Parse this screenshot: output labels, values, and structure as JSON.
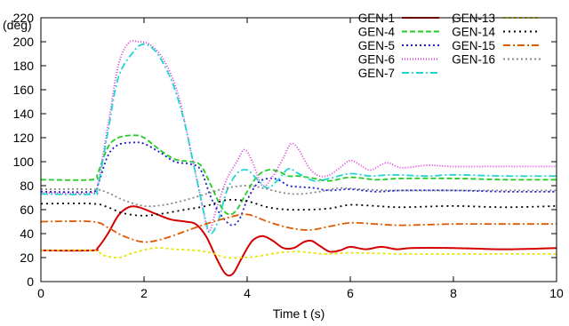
{
  "chart_data": {
    "type": "line",
    "xlabel": "Time t (s)",
    "ylabel": "(deg)",
    "xlim": [
      0,
      10
    ],
    "ylim": [
      0,
      220
    ],
    "xticks": [
      0,
      2,
      4,
      6,
      8,
      10
    ],
    "yticks": [
      0,
      20,
      40,
      60,
      80,
      100,
      120,
      140,
      160,
      180,
      200,
      220
    ],
    "grid": false,
    "legend": "top-right",
    "series": [
      {
        "name": "GEN-1",
        "color": "#d40000",
        "dash": "solid",
        "points": [
          [
            0,
            26
          ],
          [
            1.0,
            26
          ],
          [
            1.1,
            28
          ],
          [
            1.3,
            40
          ],
          [
            1.5,
            55
          ],
          [
            1.7,
            62
          ],
          [
            1.9,
            62
          ],
          [
            2.2,
            57
          ],
          [
            2.5,
            52
          ],
          [
            2.8,
            50
          ],
          [
            3.0,
            48
          ],
          [
            3.2,
            38
          ],
          [
            3.4,
            20
          ],
          [
            3.55,
            8
          ],
          [
            3.65,
            5
          ],
          [
            3.75,
            8
          ],
          [
            3.9,
            20
          ],
          [
            4.1,
            34
          ],
          [
            4.3,
            38
          ],
          [
            4.5,
            34
          ],
          [
            4.7,
            28
          ],
          [
            4.9,
            28
          ],
          [
            5.1,
            33
          ],
          [
            5.25,
            34
          ],
          [
            5.4,
            30
          ],
          [
            5.6,
            25
          ],
          [
            5.8,
            26
          ],
          [
            6.0,
            29
          ],
          [
            6.3,
            27
          ],
          [
            6.6,
            29
          ],
          [
            6.9,
            27
          ],
          [
            7.2,
            28
          ],
          [
            8,
            28
          ],
          [
            9,
            27
          ],
          [
            10,
            28
          ]
        ]
      },
      {
        "name": "GEN-4",
        "color": "#22cc22",
        "dash": "6,3",
        "points": [
          [
            0,
            85
          ],
          [
            1.0,
            85
          ],
          [
            1.1,
            90
          ],
          [
            1.3,
            112
          ],
          [
            1.5,
            120
          ],
          [
            1.8,
            122
          ],
          [
            2.0,
            120
          ],
          [
            2.3,
            110
          ],
          [
            2.6,
            102
          ],
          [
            2.9,
            100
          ],
          [
            3.1,
            97
          ],
          [
            3.3,
            80
          ],
          [
            3.5,
            62
          ],
          [
            3.65,
            56
          ],
          [
            3.8,
            60
          ],
          [
            4.0,
            75
          ],
          [
            4.2,
            88
          ],
          [
            4.4,
            93
          ],
          [
            4.6,
            92
          ],
          [
            4.8,
            88
          ],
          [
            5.0,
            88
          ],
          [
            5.3,
            86
          ],
          [
            5.6,
            84
          ],
          [
            6.0,
            87
          ],
          [
            6.5,
            85
          ],
          [
            7,
            86
          ],
          [
            8,
            86
          ],
          [
            9,
            85
          ],
          [
            10,
            85
          ]
        ]
      },
      {
        "name": "GEN-5",
        "color": "#1c1ccc",
        "dash": "2,3",
        "points": [
          [
            0,
            75
          ],
          [
            1.0,
            75
          ],
          [
            1.1,
            80
          ],
          [
            1.3,
            105
          ],
          [
            1.5,
            114
          ],
          [
            1.8,
            116
          ],
          [
            2.0,
            115
          ],
          [
            2.3,
            108
          ],
          [
            2.6,
            100
          ],
          [
            2.9,
            98
          ],
          [
            3.1,
            93
          ],
          [
            3.3,
            70
          ],
          [
            3.5,
            55
          ],
          [
            3.7,
            47
          ],
          [
            3.85,
            52
          ],
          [
            4.0,
            68
          ],
          [
            4.2,
            82
          ],
          [
            4.4,
            86
          ],
          [
            4.6,
            85
          ],
          [
            4.8,
            80
          ],
          [
            5.0,
            79
          ],
          [
            5.3,
            78
          ],
          [
            5.6,
            76
          ],
          [
            6.0,
            77
          ],
          [
            6.5,
            75
          ],
          [
            7,
            76
          ],
          [
            8,
            76
          ],
          [
            9,
            75
          ],
          [
            10,
            75
          ]
        ]
      },
      {
        "name": "GEN-6",
        "color": "#dd33dd",
        "dash": "1,2",
        "points": [
          [
            0,
            74
          ],
          [
            1.0,
            74
          ],
          [
            1.1,
            80
          ],
          [
            1.3,
            130
          ],
          [
            1.5,
            180
          ],
          [
            1.7,
            199
          ],
          [
            1.9,
            200
          ],
          [
            2.1,
            198
          ],
          [
            2.3,
            190
          ],
          [
            2.5,
            175
          ],
          [
            2.7,
            150
          ],
          [
            2.9,
            110
          ],
          [
            3.1,
            70
          ],
          [
            3.25,
            42
          ],
          [
            3.4,
            60
          ],
          [
            3.6,
            85
          ],
          [
            3.8,
            100
          ],
          [
            3.95,
            110
          ],
          [
            4.1,
            100
          ],
          [
            4.3,
            80
          ],
          [
            4.5,
            88
          ],
          [
            4.7,
            103
          ],
          [
            4.85,
            115
          ],
          [
            5.0,
            110
          ],
          [
            5.2,
            95
          ],
          [
            5.4,
            88
          ],
          [
            5.6,
            89
          ],
          [
            5.8,
            95
          ],
          [
            6.0,
            101
          ],
          [
            6.2,
            97
          ],
          [
            6.4,
            93
          ],
          [
            6.7,
            99
          ],
          [
            7.0,
            95
          ],
          [
            7.5,
            97
          ],
          [
            8,
            96
          ],
          [
            9,
            96
          ],
          [
            10,
            96
          ]
        ]
      },
      {
        "name": "GEN-7",
        "color": "#22d4d4",
        "dash": "8,3,2,3",
        "points": [
          [
            0,
            73
          ],
          [
            1.0,
            73
          ],
          [
            1.1,
            78
          ],
          [
            1.3,
            125
          ],
          [
            1.5,
            170
          ],
          [
            1.8,
            192
          ],
          [
            2.0,
            198
          ],
          [
            2.2,
            193
          ],
          [
            2.4,
            180
          ],
          [
            2.6,
            160
          ],
          [
            2.8,
            130
          ],
          [
            3.0,
            90
          ],
          [
            3.2,
            50
          ],
          [
            3.3,
            40
          ],
          [
            3.45,
            52
          ],
          [
            3.6,
            75
          ],
          [
            3.8,
            90
          ],
          [
            4.0,
            93
          ],
          [
            4.2,
            85
          ],
          [
            4.4,
            78
          ],
          [
            4.6,
            85
          ],
          [
            4.8,
            94
          ],
          [
            5.0,
            90
          ],
          [
            5.3,
            84
          ],
          [
            5.6,
            86
          ],
          [
            6.0,
            90
          ],
          [
            6.4,
            88
          ],
          [
            6.8,
            89
          ],
          [
            7.5,
            88
          ],
          [
            8,
            89
          ],
          [
            9,
            88
          ],
          [
            10,
            88
          ]
        ]
      },
      {
        "name": "GEN-13",
        "color": "#e6e600",
        "dash": "3,3",
        "points": [
          [
            0,
            26
          ],
          [
            1.0,
            26
          ],
          [
            1.2,
            22
          ],
          [
            1.5,
            20
          ],
          [
            1.8,
            24
          ],
          [
            2.2,
            28
          ],
          [
            2.6,
            27
          ],
          [
            3.0,
            26
          ],
          [
            3.3,
            24
          ],
          [
            3.6,
            20
          ],
          [
            3.9,
            20
          ],
          [
            4.2,
            21
          ],
          [
            4.6,
            24
          ],
          [
            5.0,
            25
          ],
          [
            5.5,
            23
          ],
          [
            6,
            24
          ],
          [
            7,
            23
          ],
          [
            8,
            23
          ],
          [
            9,
            23
          ],
          [
            10,
            23
          ]
        ]
      },
      {
        "name": "GEN-14",
        "color": "#000000",
        "dash": "2,4",
        "points": [
          [
            0,
            65
          ],
          [
            1.0,
            65
          ],
          [
            1.3,
            62
          ],
          [
            1.6,
            57
          ],
          [
            2.0,
            55
          ],
          [
            2.4,
            57
          ],
          [
            2.8,
            60
          ],
          [
            3.2,
            63
          ],
          [
            3.6,
            68
          ],
          [
            4.0,
            67
          ],
          [
            4.4,
            62
          ],
          [
            4.8,
            60
          ],
          [
            5.2,
            60
          ],
          [
            5.6,
            61
          ],
          [
            6.0,
            64
          ],
          [
            6.5,
            63
          ],
          [
            7,
            62
          ],
          [
            8,
            63
          ],
          [
            9,
            62
          ],
          [
            10,
            63
          ]
        ]
      },
      {
        "name": "GEN-15",
        "color": "#e05a00",
        "dash": "8,3,2,3",
        "points": [
          [
            0,
            50
          ],
          [
            1.0,
            50
          ],
          [
            1.3,
            45
          ],
          [
            1.6,
            38
          ],
          [
            2.0,
            33
          ],
          [
            2.4,
            36
          ],
          [
            2.8,
            42
          ],
          [
            3.2,
            48
          ],
          [
            3.6,
            53
          ],
          [
            4.0,
            56
          ],
          [
            4.4,
            50
          ],
          [
            4.8,
            45
          ],
          [
            5.2,
            43
          ],
          [
            5.6,
            46
          ],
          [
            6.0,
            49
          ],
          [
            6.5,
            48
          ],
          [
            7,
            47
          ],
          [
            8,
            48
          ],
          [
            9,
            48
          ],
          [
            10,
            48
          ]
        ]
      },
      {
        "name": "GEN-16",
        "color": "#888888",
        "dash": "2,3",
        "points": [
          [
            0,
            77
          ],
          [
            1.0,
            77
          ],
          [
            1.3,
            74
          ],
          [
            1.6,
            68
          ],
          [
            2.0,
            63
          ],
          [
            2.4,
            64
          ],
          [
            2.8,
            68
          ],
          [
            3.2,
            73
          ],
          [
            3.6,
            78
          ],
          [
            4.0,
            80
          ],
          [
            4.3,
            78
          ],
          [
            4.7,
            74
          ],
          [
            5.0,
            73
          ],
          [
            5.4,
            75
          ],
          [
            5.8,
            78
          ],
          [
            6.2,
            77
          ],
          [
            6.8,
            76
          ],
          [
            8,
            76
          ],
          [
            9,
            76
          ],
          [
            10,
            76
          ]
        ]
      }
    ]
  }
}
